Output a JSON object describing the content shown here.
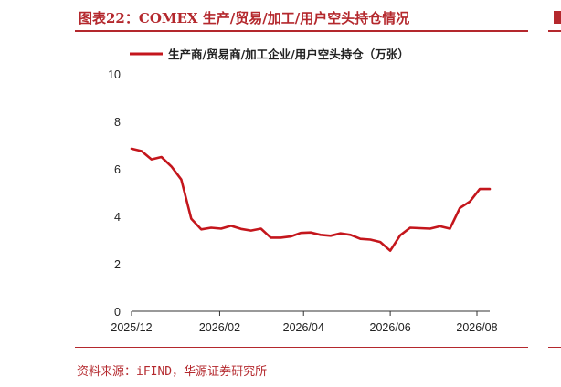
{
  "figure": {
    "title": "图表22：COMEX 生产/贸易/加工/用户空头持仓情况",
    "source": "资料来源：iFIND，华源证券研究所"
  },
  "colors": {
    "accent": "#b4282d",
    "series": "#c4161c"
  },
  "chart_data": {
    "type": "line",
    "x": [
      "2025/12/01",
      "2025/12/08",
      "2025/12/15",
      "2025/12/22",
      "2025/12/29",
      "2026/01/05",
      "2026/01/12",
      "2026/01/19",
      "2026/01/26",
      "2026/02/02",
      "2026/02/09",
      "2026/02/16",
      "2026/02/23",
      "2026/03/02",
      "2026/03/09",
      "2026/03/16",
      "2026/03/23",
      "2026/03/30",
      "2026/04/06",
      "2026/04/13",
      "2026/04/20",
      "2026/04/27",
      "2026/05/04",
      "2026/05/11",
      "2026/05/18",
      "2026/05/25",
      "2026/06/01",
      "2026/06/08",
      "2026/06/15",
      "2026/06/22",
      "2026/06/29",
      "2026/07/06",
      "2026/07/13",
      "2026/07/20",
      "2026/07/27",
      "2026/08/03",
      "2026/08/10"
    ],
    "series": [
      {
        "name": "生产商/贸易商/加工企业/用户空头持仓（万张）",
        "values": [
          6.85,
          6.75,
          6.4,
          6.5,
          6.1,
          5.55,
          3.9,
          3.45,
          3.52,
          3.48,
          3.6,
          3.47,
          3.4,
          3.48,
          3.1,
          3.1,
          3.15,
          3.3,
          3.32,
          3.22,
          3.18,
          3.28,
          3.22,
          3.05,
          3.02,
          2.92,
          2.55,
          3.2,
          3.52,
          3.5,
          3.48,
          3.58,
          3.48,
          4.35,
          4.62,
          5.15,
          5.15
        ]
      }
    ],
    "xticks": [
      "2025/12",
      "2026/02",
      "2026/04",
      "2026/06",
      "2026/08"
    ],
    "yticks": [
      0,
      2,
      4,
      6,
      8,
      10
    ],
    "ylim": [
      0,
      10
    ],
    "xlim": [
      "2025/12/01",
      "2026/08/10"
    ],
    "grid": false,
    "legend_position": "top"
  }
}
